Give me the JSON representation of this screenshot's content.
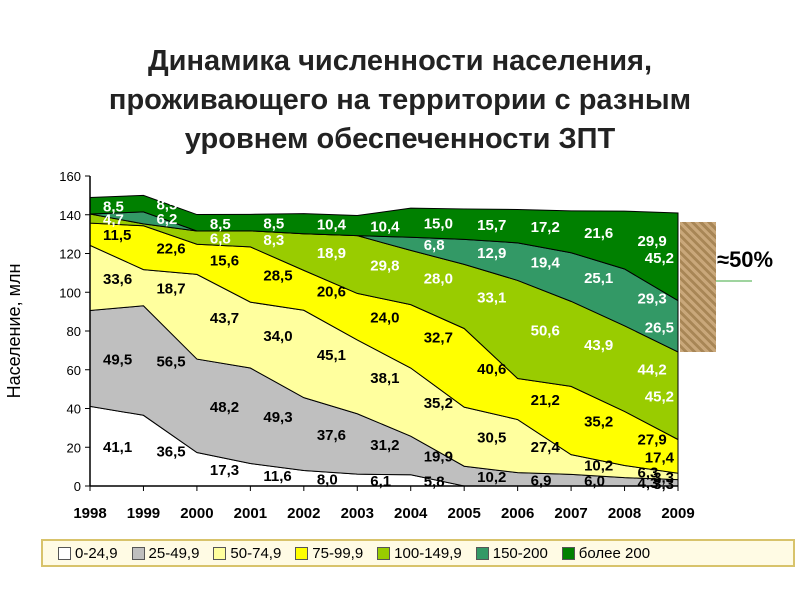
{
  "title_lines": [
    "Динамика численности населения,",
    "проживающего на территории с разным",
    "уровнем обеспеченности ЗПТ"
  ],
  "annotation": "≈50%",
  "chart_data": {
    "type": "area",
    "stacked": true,
    "ylabel": "Население, млн",
    "xlabel": "",
    "ylim": [
      0,
      160
    ],
    "yticks": [
      0,
      20,
      40,
      60,
      80,
      100,
      120,
      140,
      160
    ],
    "grid": false,
    "legend_position": "bottom",
    "categories": [
      "1998",
      "1999",
      "2000",
      "2001",
      "2002",
      "2003",
      "2004",
      "2005",
      "2006",
      "2007",
      "2008",
      "2009"
    ],
    "series": [
      {
        "name": "0-24,9",
        "color": "#ffffff",
        "label_color": "#000000",
        "values": [
          41.1,
          36.5,
          17.3,
          11.6,
          8.0,
          6.1,
          5.8,
          0.0,
          0.0,
          0.0,
          0.0,
          0.0
        ],
        "labels": [
          "41,1",
          "36,5",
          "17,3",
          "11,6",
          "8,0",
          "6,1",
          "5,8",
          "",
          "",
          "",
          "",
          ""
        ]
      },
      {
        "name": "25-49,9",
        "color": "#bfbfbf",
        "label_color": "#000000",
        "values": [
          49.5,
          56.5,
          48.2,
          49.3,
          37.6,
          31.2,
          19.9,
          10.2,
          6.9,
          6.0,
          4.3,
          3.3
        ],
        "labels": [
          "49,5",
          "56,5",
          "48,2",
          "49,3",
          "37,6",
          "31,2",
          "19,9",
          "10,2",
          "6,9",
          "6,0",
          "4,3",
          "3,3"
        ]
      },
      {
        "name": "50-74,9",
        "color": "#ffff9e",
        "label_color": "#000000",
        "values": [
          33.6,
          18.7,
          43.7,
          34.0,
          45.1,
          38.1,
          35.2,
          30.5,
          27.4,
          10.2,
          6.3,
          3.3
        ],
        "labels": [
          "33,6",
          "18,7",
          "43,7",
          "34,0",
          "45,1",
          "38,1",
          "35,2",
          "30,5",
          "27,4",
          "10,2",
          "6,3",
          "3,3"
        ]
      },
      {
        "name": "75-99,9",
        "color": "#ffff00",
        "label_color": "#000000",
        "values": [
          11.5,
          22.6,
          15.6,
          28.5,
          20.6,
          24.0,
          32.7,
          40.6,
          21.2,
          35.2,
          27.9,
          17.4
        ],
        "labels": [
          "11,5",
          "22,6",
          "15,6",
          "28,5",
          "20,6",
          "24,0",
          "32,7",
          "40,6",
          "21,2",
          "35,2",
          "27,9",
          "17,4"
        ]
      },
      {
        "name": "100-149,9",
        "color": "#99cc00",
        "label_color": "#ffffff",
        "values": [
          4.7,
          1.0,
          6.8,
          8.3,
          18.9,
          29.8,
          28.0,
          33.1,
          50.6,
          43.9,
          44.2,
          45.2
        ],
        "labels": [
          "4,7",
          "",
          "6,8",
          "8,3",
          "18,9",
          "29,8",
          "28,0",
          "33,1",
          "50,6",
          "43,9",
          "44,2",
          "45,2"
        ]
      },
      {
        "name": "150-200",
        "color": "#339966",
        "label_color": "#ffffff",
        "values": [
          0.0,
          6.2,
          0.0,
          0.0,
          0.0,
          0.0,
          6.8,
          12.9,
          19.4,
          25.1,
          29.3,
          26.5
        ],
        "labels": [
          "",
          "6,2",
          "",
          "",
          "",
          "",
          "6,8",
          "12,9",
          "19,4",
          "25,1",
          "29,3",
          "26,5"
        ]
      },
      {
        "name": "более 200",
        "color": "#008000",
        "label_color": "#ffffff",
        "values": [
          8.5,
          8.5,
          8.5,
          8.5,
          10.4,
          10.4,
          15.0,
          15.7,
          17.2,
          21.6,
          29.9,
          45.2
        ],
        "labels": [
          "8,5",
          "8,5",
          "8,5",
          "8,5",
          "10,4",
          "10,4",
          "15,0",
          "15,7",
          "17,2",
          "21,6",
          "29,9",
          "45,2"
        ]
      }
    ]
  }
}
